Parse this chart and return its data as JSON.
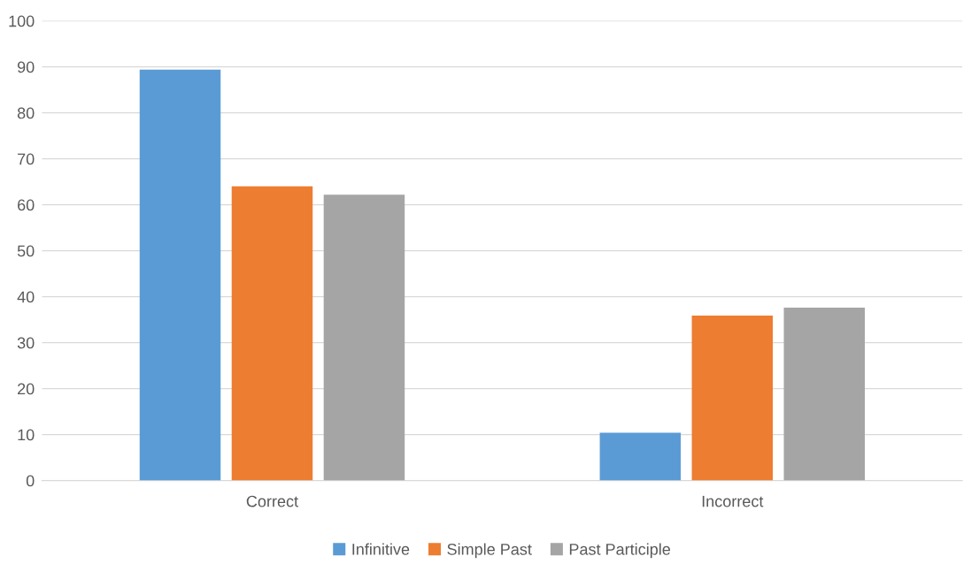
{
  "chart_data": {
    "type": "bar",
    "categories": [
      "Correct",
      "Incorrect"
    ],
    "series": [
      {
        "name": "Infinitive",
        "color": "#5b9bd5",
        "values": [
          89.4,
          10.4
        ]
      },
      {
        "name": "Simple Past",
        "color": "#ed7d31",
        "values": [
          64.0,
          35.9
        ]
      },
      {
        "name": "Past Participle",
        "color": "#a5a5a5",
        "values": [
          62.2,
          37.6
        ]
      }
    ],
    "ylim": [
      0,
      100
    ],
    "yticks": [
      0,
      10,
      20,
      30,
      40,
      50,
      60,
      70,
      80,
      90,
      100
    ],
    "grid": "y",
    "legend": "bottom"
  }
}
